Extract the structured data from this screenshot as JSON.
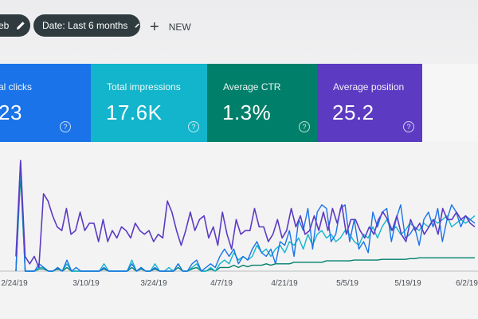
{
  "toolbar": {
    "chip_partial_label": "eb",
    "date_chip_label": "Date: Last 6 months",
    "new_label": "NEW"
  },
  "metrics": [
    {
      "title": "al clicks",
      "value": "23",
      "color": "#1a73e8"
    },
    {
      "title": "Total impressions",
      "value": "17.6K",
      "color": "#12b5cb"
    },
    {
      "title": "Average CTR",
      "value": "1.3%",
      "color": "#00806a"
    },
    {
      "title": "Average position",
      "value": "25.2",
      "color": "#5c3bc2"
    }
  ],
  "help_glyph": "?",
  "chart_data": {
    "type": "line",
    "x_labels": [
      "2/24/19",
      "3/10/19",
      "3/24/19",
      "4/7/19",
      "4/21/19",
      "5/5/19",
      "5/19/19",
      "6/2/19"
    ],
    "series": [
      {
        "key": "position",
        "color": "#5c3bc2",
        "values": [
          20,
          150,
          20,
          10,
          20,
          5,
          105,
          95,
          75,
          60,
          55,
          85,
          50,
          55,
          80,
          55,
          65,
          65,
          40,
          70,
          40,
          55,
          45,
          60,
          55,
          45,
          65,
          55,
          50,
          55,
          40,
          50,
          45,
          95,
          80,
          55,
          35,
          55,
          80,
          55,
          70,
          75,
          45,
          60,
          35,
          80,
          50,
          30,
          70,
          50,
          55,
          55,
          85,
          60,
          60,
          40,
          50,
          70,
          45,
          55,
          85,
          60,
          75,
          50,
          55,
          75,
          55,
          80,
          55,
          85,
          65,
          90,
          50,
          70,
          70,
          55,
          45,
          60,
          50,
          70,
          80,
          70,
          55,
          75,
          50,
          40,
          70,
          55,
          65,
          50,
          60,
          70,
          50,
          85,
          70,
          70,
          80,
          70,
          75,
          65,
          60
        ]
      },
      {
        "key": "clicks",
        "color": "#1a73e8",
        "values": [
          0,
          150,
          0,
          0,
          0,
          10,
          5,
          0,
          0,
          5,
          0,
          15,
          0,
          5,
          0,
          0,
          0,
          0,
          0,
          5,
          0,
          0,
          0,
          0,
          0,
          10,
          0,
          5,
          0,
          0,
          5,
          0,
          0,
          0,
          0,
          10,
          0,
          0,
          10,
          15,
          0,
          5,
          10,
          5,
          20,
          30,
          20,
          30,
          10,
          20,
          15,
          30,
          40,
          25,
          20,
          30,
          10,
          40,
          35,
          55,
          20,
          70,
          55,
          85,
          30,
          80,
          90,
          85,
          40,
          50,
          85,
          90,
          40,
          70,
          30,
          40,
          25,
          80,
          60,
          80,
          85,
          40,
          70,
          90,
          45,
          50,
          60,
          35,
          70,
          80,
          60,
          85,
          40,
          70,
          90,
          80,
          60,
          75,
          70,
          65
        ]
      },
      {
        "key": "impressions",
        "color": "#12b5cb",
        "values": [
          0,
          140,
          0,
          0,
          0,
          5,
          5,
          0,
          0,
          5,
          0,
          10,
          0,
          0,
          0,
          0,
          0,
          0,
          0,
          10,
          0,
          0,
          0,
          0,
          0,
          15,
          0,
          5,
          0,
          0,
          10,
          0,
          0,
          5,
          0,
          10,
          0,
          0,
          5,
          10,
          0,
          0,
          5,
          0,
          10,
          15,
          10,
          25,
          15,
          20,
          15,
          20,
          35,
          25,
          30,
          20,
          30,
          35,
          25,
          40,
          35,
          45,
          30,
          50,
          35,
          50,
          55,
          45,
          50,
          40,
          45,
          55,
          50,
          40,
          35,
          50,
          45,
          60,
          45,
          60,
          70,
          55,
          60,
          50,
          55,
          65,
          60,
          55,
          65,
          60,
          70,
          65,
          70,
          75,
          60,
          65,
          70,
          65,
          70,
          75
        ]
      },
      {
        "key": "ctr",
        "color": "#00806a",
        "values": [
          0,
          130,
          0,
          0,
          0,
          3,
          3,
          0,
          0,
          3,
          0,
          5,
          0,
          0,
          0,
          0,
          0,
          0,
          0,
          3,
          0,
          0,
          0,
          0,
          0,
          5,
          0,
          3,
          0,
          0,
          3,
          0,
          0,
          0,
          0,
          5,
          0,
          0,
          3,
          5,
          0,
          0,
          3,
          0,
          5,
          5,
          5,
          8,
          5,
          8,
          6,
          8,
          8,
          8,
          10,
          8,
          10,
          10,
          10,
          10,
          12,
          12,
          12,
          12,
          12,
          12,
          12,
          14,
          14,
          14,
          14,
          14,
          14,
          15,
          15,
          15,
          15,
          15,
          15,
          16,
          16,
          16,
          16,
          16,
          16,
          17,
          17,
          18,
          18,
          18,
          18,
          18,
          18,
          18,
          18,
          18,
          18,
          18,
          18,
          18
        ]
      }
    ],
    "y_scale": {
      "min": 0,
      "max": 160
    },
    "grid": false,
    "legend": "none"
  }
}
